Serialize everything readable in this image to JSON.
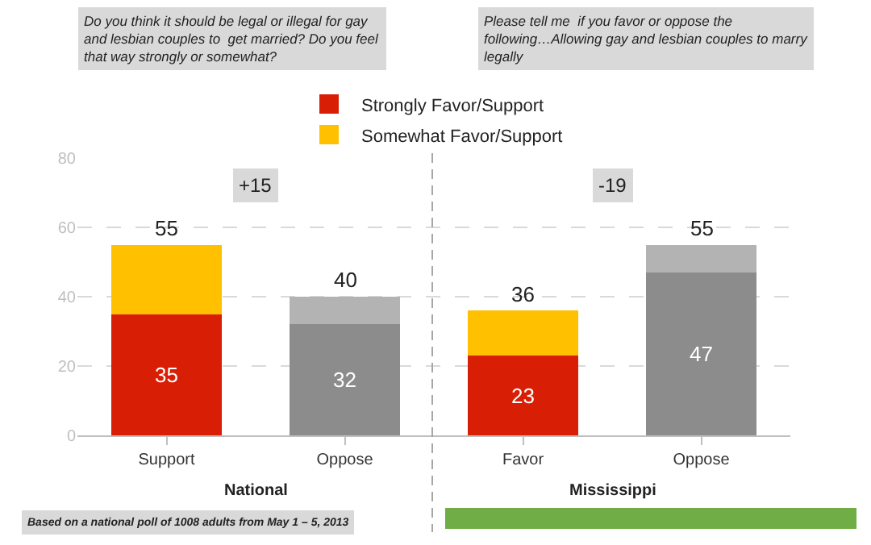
{
  "chart_data": {
    "type": "bar",
    "stacked": true,
    "categories": [
      "Support",
      "Oppose",
      "Favor",
      "Oppose"
    ],
    "series": [
      {
        "name": "Strongly Favor/Support",
        "color": "#d81e05",
        "values": [
          35,
          null,
          23,
          null
        ],
        "value_labels": [
          "35",
          null,
          "23",
          null
        ]
      },
      {
        "name": "Somewhat Favor/Support",
        "color": "#ffc000",
        "values": [
          20,
          null,
          13,
          null
        ]
      },
      {
        "color": "#8c8c8c",
        "values": [
          null,
          32,
          null,
          47
        ],
        "value_labels": [
          null,
          "32",
          null,
          "47"
        ]
      },
      {
        "color": "#b3b3b3",
        "values": [
          null,
          8,
          null,
          8
        ]
      }
    ],
    "totals": [
      "55",
      "40",
      "36",
      "55"
    ],
    "ylim": [
      0,
      80
    ],
    "yticks": [
      0,
      20,
      40,
      60,
      80
    ],
    "grid": "y",
    "legend": "top",
    "annotations": [
      "Do you think it should be legal or illegal for gay and lesbian couples to  get married? Do you feel that way strongly or somewhat?",
      "Please tell me  if you favor or oppose the following…Allowing gay and lesbian couples to marry legally",
      "+15",
      "-19",
      "National",
      "Mississippi",
      "Based on a national poll of 1008 adults from May 1 – 5, 2013"
    ]
  }
}
